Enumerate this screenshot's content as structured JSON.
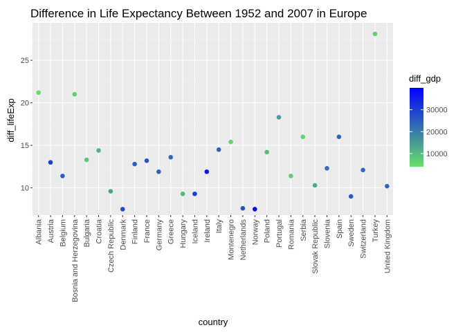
{
  "chart_data": {
    "type": "scatter",
    "title": "Difference in Life Expectancy Between 1952 and 2007 in Europe",
    "xlabel": "country",
    "ylabel": "diff_lifeExp",
    "ylim": [
      6.8,
      29.4
    ],
    "yticks": [
      10,
      15,
      20,
      25
    ],
    "grid": true,
    "legend": {
      "title": "diff_gdp",
      "position": "right",
      "range": [
        4000,
        40000
      ],
      "ticks": [
        10000,
        20000,
        30000
      ],
      "tick_labels": [
        "10000",
        "20000",
        "30000"
      ],
      "low_color": "#66e066",
      "high_color": "#0000ff"
    },
    "categories": [
      "Albania",
      "Austria",
      "Belgium",
      "Bosnia and Herzegovina",
      "Bulgaria",
      "Croatia",
      "Czech Republic",
      "Denmark",
      "Finland",
      "France",
      "Germany",
      "Greece",
      "Hungary",
      "Iceland",
      "Ireland",
      "Italy",
      "Montenegro",
      "Netherlands",
      "Norway",
      "Poland",
      "Portugal",
      "Romania",
      "Serbia",
      "Slovak Republic",
      "Slovenia",
      "Spain",
      "Sweden",
      "Switzerland",
      "Turkey",
      "United Kingdom"
    ],
    "values": [
      21.2,
      13.0,
      11.4,
      21.0,
      13.3,
      14.4,
      9.6,
      7.5,
      12.8,
      13.2,
      11.9,
      13.6,
      9.3,
      9.3,
      11.9,
      14.5,
      15.4,
      7.6,
      7.5,
      14.2,
      18.3,
      11.4,
      16.0,
      10.3,
      12.3,
      16.0,
      9.0,
      12.1,
      28.1,
      10.2
    ],
    "diff_gdp": [
      4700,
      30000,
      25000,
      6500,
      8000,
      11000,
      13500,
      28000,
      25000,
      26000,
      24000,
      23000,
      10500,
      30000,
      36000,
      24000,
      6000,
      27000,
      39000,
      10000,
      15000,
      7000,
      6000,
      12500,
      22000,
      24000,
      25000,
      23000,
      6500,
      24000
    ]
  }
}
